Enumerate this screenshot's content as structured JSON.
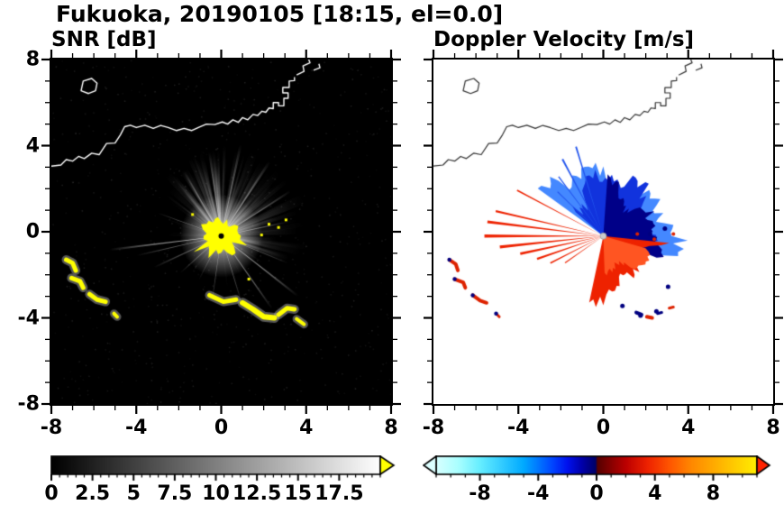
{
  "header": {
    "title": "Fukuoka, 20190105 [18:15, el=0.0]"
  },
  "chart_data": {
    "type": "heatmap",
    "title": "Fukuoka, 20190105 [18:15, el=0.0]",
    "station": "Fukuoka",
    "date_label": "20190105",
    "time_label": "18:15",
    "elevation_label": "el=0.0",
    "radar_center": [
      0,
      -0.2
    ],
    "panels": [
      {
        "id": "snr",
        "title": "SNR [dB]",
        "xlim": [
          -8,
          8
        ],
        "ylim": [
          -8,
          8
        ],
        "xticks": [
          -8,
          -4,
          0,
          4,
          8
        ],
        "yticks": [
          8,
          4,
          0,
          -4,
          -8
        ],
        "background": "#000000",
        "coastline_color": "#ffffff",
        "data_summary": "Radar SNR field: saturated yellow core (>17.5 dB) at the radar site near (0,-0.2) with radial bright beams in all directions, a broad bright fan toward N-NE, and yellow coastal sea/ground clutter arcs near (-7,-1.5) to (-5,-4) and (0,-3) to (4,-4.5).",
        "colorbar": {
          "min": 0,
          "max": 20,
          "minor_step": 0.5,
          "tick_values": [
            0,
            2.5,
            5,
            7.5,
            10,
            12.5,
            15,
            17.5
          ],
          "tick_labels": [
            "0",
            "2.5",
            "5",
            "7.5",
            "10",
            "12.5",
            "15",
            "17.5"
          ],
          "stops": [
            [
              0,
              "#000000"
            ],
            [
              20,
              "#ffffff"
            ]
          ],
          "over_arrow_color": "#ffff00"
        }
      },
      {
        "id": "velocity",
        "title": "Doppler Velocity [m/s]",
        "xlim": [
          -8,
          8
        ],
        "ylim": [
          -8,
          8
        ],
        "xticks": [
          -8,
          -4,
          0,
          4,
          8
        ],
        "yticks": [
          8,
          4,
          0,
          -4,
          -8
        ],
        "background": "#ffffff",
        "coastline_color": "#333333",
        "data_summary": "Doppler velocity: negative velocities (blue/navy, toward radar) in a ragged fan N-NE of the radar out to ~4.5 km; positive velocities (red/orange, away) in a fan S-SE and as thin rays extending west; small red/navy clutter echoes along the SW coastline.",
        "colorbar": {
          "min": -11,
          "max": 11,
          "minor_step": 1,
          "tick_values": [
            -8,
            -4,
            0,
            4,
            8
          ],
          "tick_labels": [
            "-8",
            "-4",
            "0",
            "4",
            "8"
          ],
          "stops": [
            [
              -11,
              "#d8ffff"
            ],
            [
              -9.5,
              "#aaffff"
            ],
            [
              -8,
              "#66eeff"
            ],
            [
              -6.5,
              "#33ccff"
            ],
            [
              -5,
              "#00aaff"
            ],
            [
              -4,
              "#0077ff"
            ],
            [
              -3,
              "#0044ff"
            ],
            [
              -2,
              "#0011ee"
            ],
            [
              -1,
              "#0000aa"
            ],
            [
              -0.05,
              "#000066"
            ],
            [
              0.05,
              "#550000"
            ],
            [
              1,
              "#880000"
            ],
            [
              2,
              "#bb0000"
            ],
            [
              3.5,
              "#ee2200"
            ],
            [
              5,
              "#ff5500"
            ],
            [
              6.5,
              "#ff8800"
            ],
            [
              8,
              "#ffaa00"
            ],
            [
              9.5,
              "#ffcc00"
            ],
            [
              11,
              "#ffee00"
            ]
          ],
          "under_arrow_color": "#ddffff",
          "over_arrow_color": "#ff2200"
        }
      }
    ],
    "coastlines": [
      {
        "closed": false,
        "pts": [
          [
            -8,
            3.05
          ],
          [
            -7.55,
            3.1
          ],
          [
            -7.3,
            3.35
          ],
          [
            -7.0,
            3.28
          ],
          [
            -6.72,
            3.5
          ],
          [
            -6.45,
            3.4
          ],
          [
            -6.1,
            3.65
          ],
          [
            -5.75,
            3.58
          ],
          [
            -5.4,
            4.1
          ],
          [
            -5.0,
            4.12
          ],
          [
            -4.75,
            4.5
          ],
          [
            -4.55,
            4.88
          ],
          [
            -4.28,
            4.95
          ],
          [
            -4.0,
            4.84
          ],
          [
            -3.6,
            4.95
          ],
          [
            -3.2,
            4.8
          ],
          [
            -2.85,
            4.94
          ],
          [
            -2.5,
            4.84
          ],
          [
            -2.1,
            4.7
          ],
          [
            -1.75,
            4.8
          ],
          [
            -1.4,
            4.7
          ],
          [
            -1.05,
            4.85
          ],
          [
            -0.7,
            5.0
          ],
          [
            -0.3,
            4.98
          ],
          [
            0.05,
            5.1
          ],
          [
            0.3,
            5.0
          ],
          [
            0.55,
            5.2
          ],
          [
            0.8,
            5.08
          ],
          [
            1.0,
            5.3
          ],
          [
            1.25,
            5.2
          ],
          [
            1.5,
            5.45
          ],
          [
            1.72,
            5.4
          ],
          [
            1.92,
            5.6
          ],
          [
            2.1,
            5.55
          ],
          [
            2.25,
            5.75
          ],
          [
            2.45,
            5.72
          ],
          [
            2.45,
            6.0
          ],
          [
            2.7,
            6.0
          ],
          [
            2.7,
            5.85
          ],
          [
            2.95,
            5.85
          ],
          [
            2.95,
            6.2
          ],
          [
            3.15,
            6.2
          ],
          [
            3.15,
            6.45
          ],
          [
            2.9,
            6.45
          ],
          [
            2.9,
            6.7
          ],
          [
            3.2,
            6.7
          ],
          [
            3.2,
            7.0
          ],
          [
            3.45,
            7.02
          ],
          [
            3.45,
            7.18
          ]
        ]
      },
      {
        "closed": false,
        "pts": [
          [
            3.55,
            7.28
          ],
          [
            3.9,
            7.45
          ],
          [
            3.85,
            7.7
          ],
          [
            4.18,
            7.85
          ],
          [
            4.12,
            8.0
          ]
        ]
      },
      {
        "closed": false,
        "pts": [
          [
            4.35,
            7.5
          ],
          [
            4.65,
            7.62
          ],
          [
            4.6,
            7.8
          ]
        ]
      },
      {
        "closed": true,
        "pts": [
          [
            -6.6,
            6.55
          ],
          [
            -6.25,
            6.42
          ],
          [
            -5.92,
            6.55
          ],
          [
            -5.85,
            6.9
          ],
          [
            -6.1,
            7.12
          ],
          [
            -6.5,
            7.0
          ]
        ]
      }
    ],
    "snr_features": {
      "center_dot_color": "#000000",
      "core_color": "#ffff00",
      "core_radius": 0.75,
      "core_spikes": [
        {
          "a": -55,
          "r": 1.8
        },
        {
          "a": -20,
          "r": 1.3
        },
        {
          "a": 210,
          "r": 1.5
        },
        {
          "a": 240,
          "r": 1.2
        },
        {
          "a": 95,
          "r": 1.15
        },
        {
          "a": 150,
          "r": 1.1
        }
      ],
      "core_specks": [
        [
          2.25,
          0.35
        ],
        [
          2.7,
          0.2
        ],
        [
          3.05,
          0.55
        ],
        [
          1.9,
          -0.15
        ],
        [
          -1.35,
          0.8
        ],
        [
          1.3,
          -2.2
        ]
      ],
      "ray_seed": 20190105,
      "random_rays": 150,
      "haze_rays": 90,
      "haze_sector": [
        -20,
        150
      ],
      "bright_rays": [
        {
          "a": 187,
          "len": 5.3,
          "w": 1.1,
          "al": 0.85
        },
        {
          "a": 193,
          "len": 4.1,
          "w": 0.9,
          "al": 0.6
        },
        {
          "a": 160,
          "len": 3.2,
          "w": 0.9,
          "al": 0.6
        },
        {
          "a": 205,
          "len": 3.5,
          "w": 1.4,
          "al": 0.55
        },
        {
          "a": 222,
          "len": 2.6,
          "w": 1.2,
          "al": 0.5
        },
        {
          "a": 243,
          "len": 2.3,
          "w": 1.1,
          "al": 0.5
        },
        {
          "a": 262,
          "len": 3.1,
          "w": 0.8,
          "al": 0.65
        },
        {
          "a": 287,
          "len": 3.3,
          "w": 1.0,
          "al": 0.6
        },
        {
          "a": 305,
          "len": 4.2,
          "w": 1.2,
          "al": 0.7
        },
        {
          "a": 322,
          "len": 4.6,
          "w": 1.3,
          "al": 0.75
        },
        {
          "a": 338,
          "len": 3.4,
          "w": 1.0,
          "al": 0.6
        },
        {
          "a": 12,
          "len": 3.1,
          "w": 1.2,
          "al": 0.6
        },
        {
          "a": 33,
          "len": 3.9,
          "w": 1.6,
          "al": 0.65
        },
        {
          "a": 57,
          "len": 4.2,
          "w": 1.8,
          "al": 0.6
        },
        {
          "a": 78,
          "len": 4.4,
          "w": 1.6,
          "al": 0.6
        },
        {
          "a": 98,
          "len": 4.0,
          "w": 1.6,
          "al": 0.6
        },
        {
          "a": 120,
          "len": 3.5,
          "w": 1.4,
          "al": 0.6
        }
      ],
      "clutter_color": "#ffff00",
      "clutter_halo": "#aaaaaa",
      "clutter": [
        {
          "pts": [
            [
              -7.3,
              -1.3
            ],
            [
              -7.0,
              -1.45
            ],
            [
              -6.85,
              -1.8
            ]
          ],
          "lw": 5
        },
        {
          "pts": [
            [
              -7.05,
              -2.15
            ],
            [
              -6.65,
              -2.3
            ],
            [
              -6.5,
              -2.6
            ]
          ],
          "lw": 5
        },
        {
          "pts": [
            [
              -6.2,
              -2.9
            ],
            [
              -5.85,
              -3.15
            ],
            [
              -5.45,
              -3.25
            ]
          ],
          "lw": 5
        },
        {
          "pts": [
            [
              -5.05,
              -3.8
            ],
            [
              -4.9,
              -3.95
            ]
          ],
          "lw": 4
        },
        {
          "pts": [
            [
              -0.55,
              -2.95
            ],
            [
              0.1,
              -3.25
            ],
            [
              0.7,
              -3.15
            ]
          ],
          "lw": 5
        },
        {
          "pts": [
            [
              1.0,
              -3.3
            ],
            [
              1.5,
              -3.6
            ],
            [
              2.0,
              -3.95
            ],
            [
              2.5,
              -4.0
            ]
          ],
          "lw": 6
        },
        {
          "pts": [
            [
              2.7,
              -3.85
            ],
            [
              3.1,
              -3.55
            ],
            [
              3.45,
              -3.6
            ]
          ],
          "lw": 5
        },
        {
          "pts": [
            [
              3.55,
              -4.05
            ],
            [
              3.9,
              -4.3
            ]
          ],
          "lw": 4
        }
      ]
    },
    "vel_features": {
      "center_dot_color": "#cccccc",
      "navy_color": "#000080",
      "red_color": "#dd2200",
      "blue_layers": [
        {
          "color": "#4488ff",
          "a0": -18,
          "a1": 144,
          "rb": 2.5,
          "rv": 1.7,
          "ph": 1.3
        },
        {
          "color": "#1133dd",
          "a0": -14,
          "a1": 140,
          "rb": 2.2,
          "rv": 1.4,
          "ph": 4.0
        },
        {
          "color": "#000088",
          "a0": -22,
          "a1": 88,
          "rb": 2.1,
          "rv": 1.2,
          "ph": 2.2
        }
      ],
      "blue_ray_color": "#2255ee",
      "blue_rays": [
        {
          "a": 118,
          "len": 4.1,
          "w": 1.2
        },
        {
          "a": 127,
          "len": 3.5,
          "w": 1.0
        },
        {
          "a": 107,
          "len": 4.4,
          "w": 1.0
        },
        {
          "a": 136,
          "len": 3.0,
          "w": 1.0
        }
      ],
      "red_ray_color": "#ee2200",
      "red_rays": [
        {
          "a": 152,
          "len": 4.6,
          "w": 0.9
        },
        {
          "a": 167,
          "len": 5.2,
          "w": 1.1
        },
        {
          "a": 173,
          "len": 5.5,
          "w": 1.3
        },
        {
          "a": 180,
          "len": 5.6,
          "w": 1.5
        },
        {
          "a": 186,
          "len": 4.9,
          "w": 1.6
        },
        {
          "a": 192,
          "len": 4.0,
          "w": 1.8
        },
        {
          "a": 199,
          "len": 3.3,
          "w": 1.8
        },
        {
          "a": 207,
          "len": 2.8,
          "w": 1.6
        },
        {
          "a": 215,
          "len": 2.2,
          "w": 1.5
        }
      ],
      "red_layers": [
        {
          "color": "#ee2200",
          "a0": 258,
          "a1": 356,
          "rb": 2.3,
          "rv": 1.3,
          "ph": 0.7
        },
        {
          "color": "#ff5522",
          "a0": 272,
          "a1": 344,
          "rb": 1.7,
          "rv": 0.9,
          "ph": 2.9
        }
      ],
      "navy_specks": [
        [
          0.9,
          -3.45
        ],
        [
          1.75,
          -3.9
        ],
        [
          2.5,
          -3.7
        ],
        [
          3.05,
          -2.55
        ],
        [
          2.2,
          -0.1
        ],
        [
          2.9,
          0.15
        ]
      ],
      "red_specks_in_blue": [
        [
          1.6,
          -0.1
        ],
        [
          2.4,
          -0.35
        ],
        [
          3.3,
          -0.1
        ]
      ],
      "clutter": [
        {
          "pts": [
            [
              -7.25,
              -1.3
            ],
            [
              -6.95,
              -1.5
            ],
            [
              -6.85,
              -1.8
            ]
          ],
          "lw": 4,
          "color": "#dd2200",
          "tip": "#000080"
        },
        {
          "pts": [
            [
              -7.0,
              -2.2
            ],
            [
              -6.6,
              -2.35
            ],
            [
              -6.5,
              -2.6
            ]
          ],
          "lw": 4,
          "color": "#dd2200",
          "tip": "#000080"
        },
        {
          "pts": [
            [
              -6.15,
              -2.95
            ],
            [
              -5.8,
              -3.2
            ],
            [
              -5.5,
              -3.3
            ]
          ],
          "lw": 4,
          "color": "#dd2200",
          "tip": "#000080"
        },
        {
          "pts": [
            [
              -5.05,
              -3.8
            ],
            [
              -4.9,
              -3.95
            ]
          ],
          "lw": 3,
          "color": "#dd2200",
          "tip": "#000080"
        },
        {
          "pts": [
            [
              1.55,
              -3.75
            ],
            [
              1.8,
              -3.85
            ]
          ],
          "lw": 4,
          "color": "#000080"
        },
        {
          "pts": [
            [
              2.05,
              -3.95
            ],
            [
              2.3,
              -4.0
            ]
          ],
          "lw": 4,
          "color": "#dd2200"
        },
        {
          "pts": [
            [
              2.55,
              -3.8
            ],
            [
              2.75,
              -3.75
            ]
          ],
          "lw": 3,
          "color": "#000080"
        },
        {
          "pts": [
            [
              3.1,
              -3.55
            ],
            [
              3.3,
              -3.5
            ]
          ],
          "lw": 3,
          "color": "#dd2200"
        }
      ]
    }
  }
}
